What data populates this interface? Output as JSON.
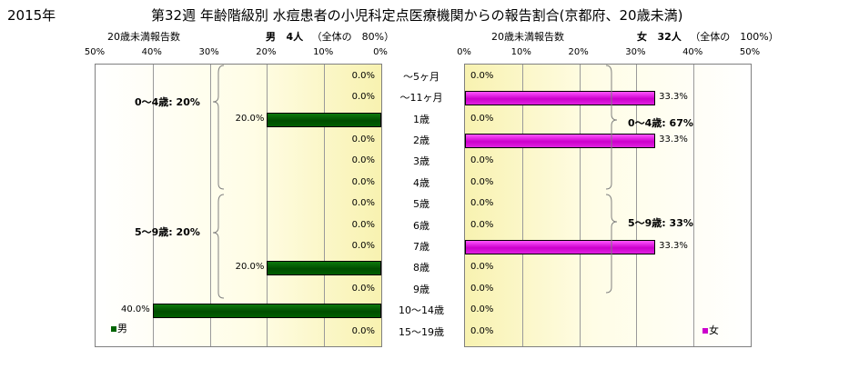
{
  "header": {
    "year": "2015年",
    "title": "第32週 年齢階級別 水痘患者の小児科定点医療機関からの報告割合(京都府、20歳未満)"
  },
  "left_panel": {
    "axis_caption": "20歳未満報告数",
    "series_name": "男",
    "count_label": "4人",
    "total_label": "（全体の　80%）",
    "legend": "男",
    "group_labels": [
      "0～4歳: 20%",
      "5～9歳: 20%"
    ]
  },
  "right_panel": {
    "axis_caption": "20歳未満報告数",
    "series_name": "女",
    "count_label": "32人",
    "total_label": "（全体の　100%）",
    "legend": "女",
    "group_labels": [
      "0～4歳: 67%",
      "5～9歳: 33%"
    ]
  },
  "colors": {
    "male": "#006400",
    "female": "#cc00cc",
    "plot_bg": "#fffde6"
  },
  "chart_data": {
    "type": "bar",
    "orientation": "horizontal",
    "categories": [
      "～5ヶ月",
      "～11ヶ月",
      "1歳",
      "2歳",
      "3歳",
      "4歳",
      "5歳",
      "6歳",
      "7歳",
      "8歳",
      "9歳",
      "10～14歳",
      "15～19歳"
    ],
    "xlim": [
      0,
      50
    ],
    "ticks": [
      "0%",
      "10%",
      "20%",
      "30%",
      "40%",
      "50%"
    ],
    "series": [
      {
        "name": "男",
        "values": [
          0,
          0,
          20,
          0,
          0,
          0,
          0,
          0,
          0,
          20,
          0,
          40,
          0
        ],
        "labels": [
          "0.0%",
          "0.0%",
          "20.0%",
          "0.0%",
          "0.0%",
          "0.0%",
          "0.0%",
          "0.0%",
          "0.0%",
          "20.0%",
          "0.0%",
          "40.0%",
          "0.0%"
        ]
      },
      {
        "name": "女",
        "values": [
          0,
          33.3,
          0,
          33.3,
          0,
          0,
          0,
          0,
          33.3,
          0,
          0,
          0,
          0
        ],
        "labels": [
          "0.0%",
          "33.3%",
          "0.0%",
          "33.3%",
          "0.0%",
          "0.0%",
          "0.0%",
          "0.0%",
          "33.3%",
          "0.0%",
          "0.0%",
          "0.0%",
          "0.0%"
        ]
      }
    ]
  }
}
